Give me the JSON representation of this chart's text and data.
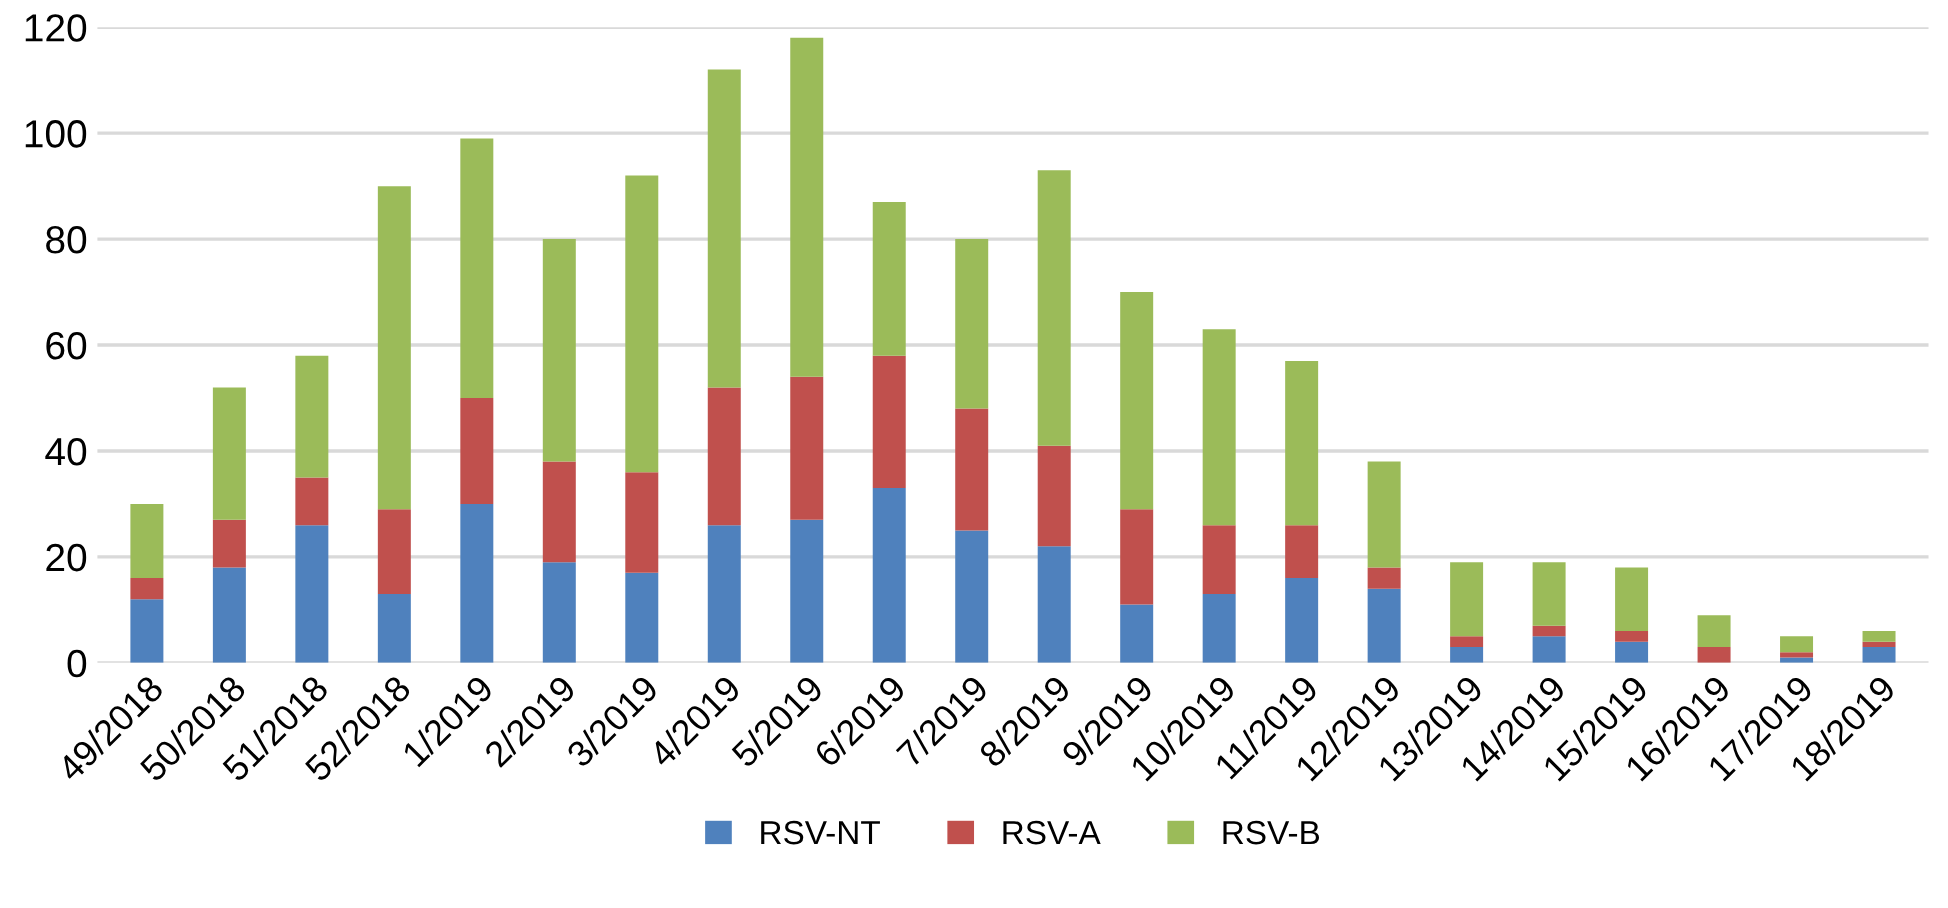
{
  "chart_data": {
    "type": "bar",
    "stacked": true,
    "categories": [
      "49/2018",
      "50/2018",
      "51/2018",
      "52/2018",
      "1/2019",
      "2/2019",
      "3/2019",
      "4/2019",
      "5/2019",
      "6/2019",
      "7/2019",
      "8/2019",
      "9/2019",
      "10/2019",
      "11/2019",
      "12/2019",
      "13/2019",
      "14/2019",
      "15/2019",
      "16/2019",
      "17/2019",
      "18/2019"
    ],
    "series": [
      {
        "name": "RSV-NT",
        "color": "#4f81bd",
        "values": [
          12,
          18,
          26,
          13,
          30,
          19,
          17,
          26,
          27,
          33,
          25,
          22,
          11,
          13,
          16,
          14,
          3,
          5,
          4,
          0,
          1,
          3
        ]
      },
      {
        "name": "RSV-A",
        "color": "#c0504d",
        "values": [
          4,
          9,
          9,
          16,
          20,
          19,
          19,
          26,
          27,
          25,
          23,
          19,
          18,
          13,
          10,
          4,
          2,
          2,
          2,
          3,
          1,
          1
        ]
      },
      {
        "name": "RSV-B",
        "color": "#9bbb59",
        "values": [
          14,
          25,
          23,
          61,
          49,
          42,
          56,
          60,
          64,
          29,
          32,
          52,
          41,
          37,
          31,
          20,
          14,
          12,
          12,
          6,
          3,
          2
        ]
      }
    ],
    "ylim": [
      0,
      120
    ],
    "yticks": [
      0,
      20,
      40,
      60,
      80,
      100,
      120
    ],
    "grid": "y",
    "legend": "bottom"
  }
}
